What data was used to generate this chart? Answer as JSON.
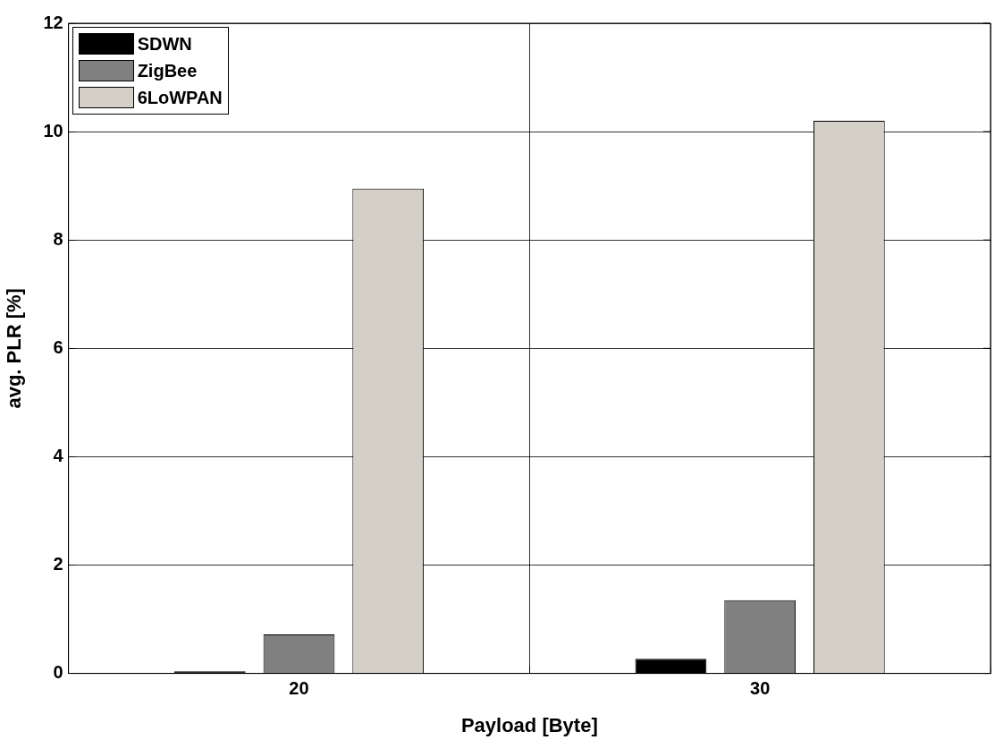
{
  "chart_data": {
    "type": "bar",
    "xlabel": "Payload [Byte]",
    "ylabel": "avg. PLR [%]",
    "categories": [
      "20",
      "30"
    ],
    "series": [
      {
        "name": "SDWN",
        "color": "#000000",
        "values": [
          0.04,
          0.27
        ]
      },
      {
        "name": "ZigBee",
        "color": "#808080",
        "values": [
          0.72,
          1.35
        ]
      },
      {
        "name": "6LoWPAN",
        "color": "#d4d0c8",
        "values": [
          8.95,
          10.2
        ]
      }
    ],
    "ylim": [
      0,
      12
    ],
    "yticks": [
      0,
      2,
      4,
      6,
      8,
      10,
      12
    ],
    "grid": true,
    "legend": "top left"
  }
}
